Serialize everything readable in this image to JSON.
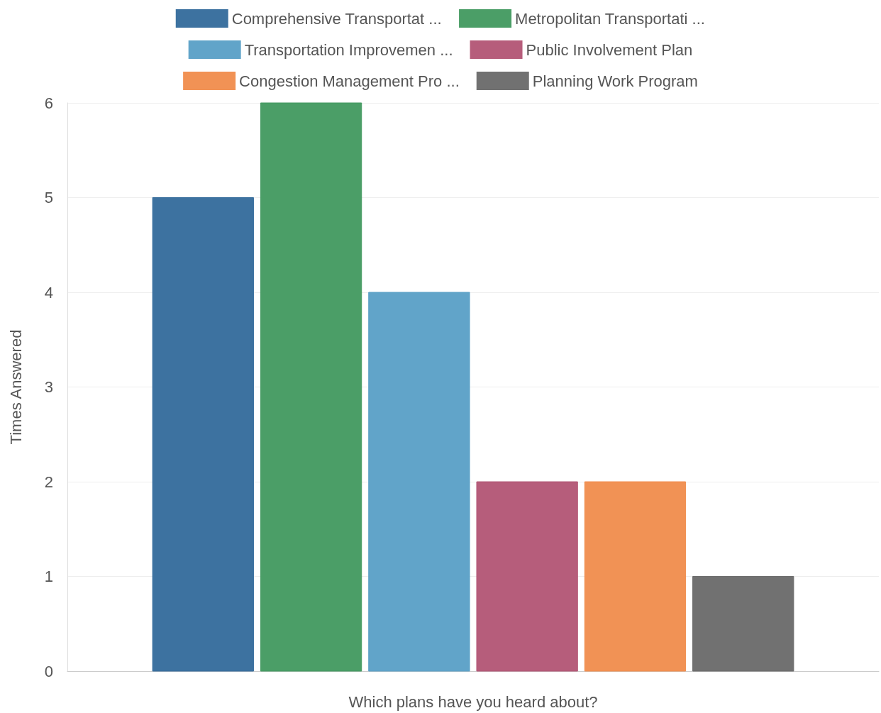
{
  "chart_data": {
    "type": "bar",
    "xlabel": "Which plans have you heard about?",
    "ylabel": "Times Answered",
    "categories": [
      null
    ],
    "series": [
      {
        "name": "Comprehensive Transportat ...",
        "color": "#336a9b",
        "values": [
          5
        ]
      },
      {
        "name": "Metropolitan Transportati ...",
        "color": "#41995f",
        "values": [
          6
        ]
      },
      {
        "name": "Transportation Improvemen ...",
        "color": "#589fc6",
        "values": [
          4
        ]
      },
      {
        "name": "Public Involvement Plan",
        "color": "#b25474",
        "values": [
          2
        ]
      },
      {
        "name": "Congestion Management Pro ...",
        "color": "#f08c4c",
        "values": [
          2
        ]
      },
      {
        "name": "Planning Work Program",
        "color": "#696969",
        "values": [
          1
        ]
      }
    ],
    "ylim": [
      0,
      6
    ],
    "yticks": [
      0,
      1,
      2,
      3,
      4,
      5,
      6
    ],
    "grid": "y",
    "legend": "top"
  }
}
